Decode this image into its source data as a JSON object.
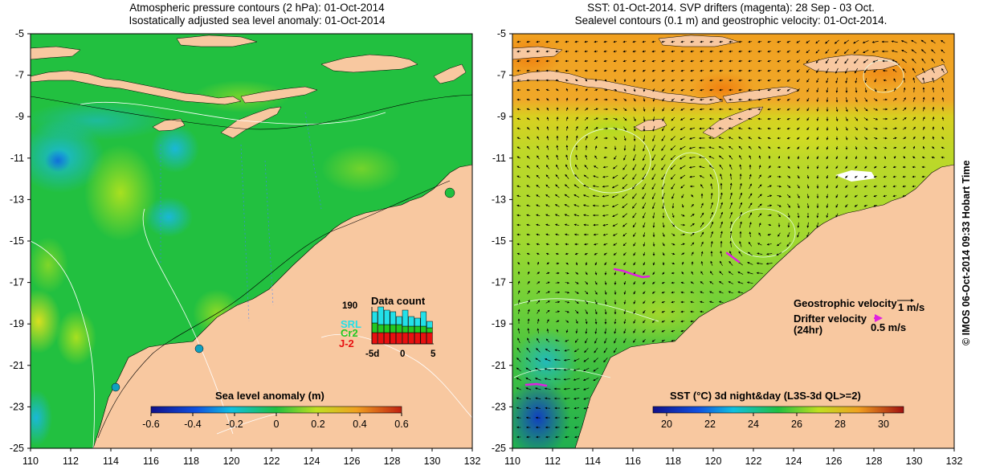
{
  "left_panel": {
    "title_line1": "Atmospheric pressure contours (2 hPa): 01-Oct-2014",
    "title_line2": "Isostatically adjusted sea level anomaly: 01-Oct-2014",
    "y_ticks": [
      "-5",
      "-7",
      "-9",
      "-11",
      "-13",
      "-15",
      "-17",
      "-19",
      "-21",
      "-23",
      "-25"
    ],
    "x_ticks": [
      "110",
      "112",
      "114",
      "116",
      "118",
      "120",
      "122",
      "124",
      "126",
      "128",
      "130",
      "132"
    ],
    "colorbar_title": "Sea level anomaly (m)",
    "colorbar_ticks": [
      "-0.6",
      "-0.4",
      "-0.2",
      "0",
      "0.2",
      "0.4",
      "0.6"
    ],
    "inset": {
      "title": "Data count",
      "ymax_label": "190",
      "series_labels": [
        "SRL",
        "Cr2",
        "J-2"
      ],
      "x_ticks": [
        "-5d",
        "0",
        "5"
      ],
      "colors": {
        "SRL": "#22e0e8",
        "Cr2": "#22c822",
        "J-2": "#e81010"
      }
    }
  },
  "right_panel": {
    "title_line1": "SST: 01-Oct-2014. SVP drifters (magenta): 28 Sep - 03 Oct.",
    "title_line2": "Sealevel contours (0.1 m) and geostrophic velocity: 01-Oct-2014.",
    "y_ticks": [
      "-5",
      "-7",
      "-9",
      "-11",
      "-13",
      "-15",
      "-17",
      "-19",
      "-21",
      "-23",
      "-25"
    ],
    "x_ticks": [
      "110",
      "112",
      "114",
      "116",
      "118",
      "120",
      "122",
      "124",
      "126",
      "128",
      "130",
      "132"
    ],
    "colorbar_title": "SST (°C) 3d night&day (L3S-3d QL>=2)",
    "colorbar_ticks": [
      "20",
      "22",
      "24",
      "26",
      "28",
      "30"
    ],
    "legend": {
      "geo_label": "Geostrophic velocity",
      "geo_scale": "1 m/s",
      "drifter_label_1": "Drifter velocity",
      "drifter_label_2": "(24hr)",
      "drifter_scale": "0.5 m/s"
    }
  },
  "copyright": "© IMOS 06-Oct-2014 09:33 Hobart Time",
  "colors": {
    "land": "#f8c8a0",
    "ocean_green": "#22c040",
    "drifter": "#e020e0"
  }
}
